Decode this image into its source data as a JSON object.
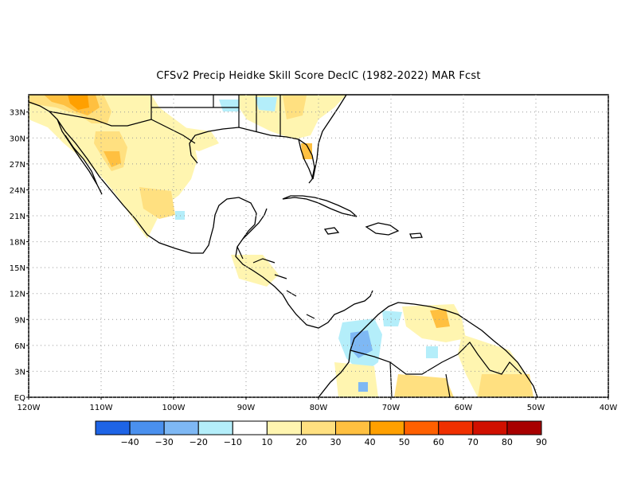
{
  "title": "CFSv2 Precip Heidke Skill Score DecIC (1982-2022) MAR Fcst",
  "map": {
    "lon_range": [
      -120,
      -40
    ],
    "lat_range": [
      0,
      35
    ],
    "lat_labels": [
      "EQ",
      "3N",
      "6N",
      "9N",
      "12N",
      "15N",
      "18N",
      "21N",
      "24N",
      "27N",
      "30N",
      "33N"
    ],
    "lon_labels": [
      "120W",
      "110W",
      "100W",
      "90W",
      "80W",
      "70W",
      "60W",
      "50W",
      "40W"
    ],
    "gridlines": "dotted"
  },
  "colorbar": {
    "colors": [
      "#1e64e6",
      "#4a90ee",
      "#7eb8f4",
      "#b4eefa",
      "#ffffff",
      "#fff5b0",
      "#ffe080",
      "#ffc040",
      "#ffa000",
      "#ff6000",
      "#f03000",
      "#d01000",
      "#a80000"
    ],
    "labels": [
      "−40",
      "−30",
      "−20",
      "−10",
      "10",
      "20",
      "30",
      "40",
      "50",
      "60",
      "70",
      "80",
      "90"
    ]
  }
}
